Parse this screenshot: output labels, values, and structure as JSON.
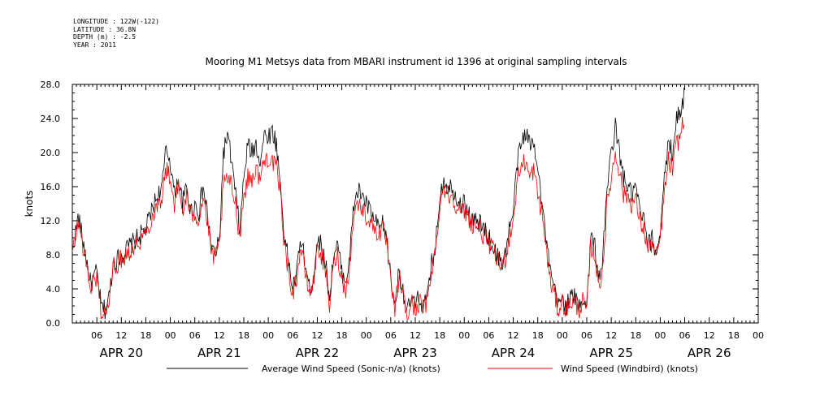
{
  "header": {
    "longitude": "LONGITUDE : 122W(-122)",
    "latitude": "LATITUDE : 36.8N",
    "depth": "DEPTH (m) : -2.5",
    "year": "YEAR : 2011"
  },
  "chart_data": {
    "type": "line",
    "title": "Mooring M1 Metsys data from MBARI instrument id 1396 at original sampling intervals",
    "ylabel": "knots",
    "xlabel": "",
    "ylim": [
      0,
      28
    ],
    "yticks": [
      "0.0",
      "4.0",
      "8.0",
      "12.0",
      "16.0",
      "20.0",
      "24.0",
      "28.0"
    ],
    "xlim_hours": [
      0,
      168
    ],
    "hour_tick_labels": [
      "06",
      "12",
      "18",
      "00",
      "06",
      "12",
      "18",
      "00",
      "06",
      "12",
      "18",
      "00",
      "06",
      "12",
      "18",
      "00",
      "06",
      "12",
      "18",
      "00",
      "06",
      "12",
      "18",
      "00",
      "06",
      "12",
      "18",
      "00"
    ],
    "day_labels": [
      "APR 20",
      "APR 21",
      "APR 22",
      "APR 23",
      "APR 24",
      "APR 25",
      "APR 26"
    ],
    "grid": false,
    "legend_position": "bottom",
    "series": [
      {
        "name": "Average Wind Speed (Sonic-n/a) (knots)",
        "color": "#000000",
        "keypoints": [
          [
            0,
            8.5
          ],
          [
            1.5,
            12.5
          ],
          [
            3,
            8.5
          ],
          [
            4.5,
            4.5
          ],
          [
            6,
            6
          ],
          [
            7,
            2
          ],
          [
            8,
            1.5
          ],
          [
            9,
            3
          ],
          [
            10,
            7
          ],
          [
            12,
            8
          ],
          [
            14,
            9
          ],
          [
            16,
            10
          ],
          [
            18,
            11
          ],
          [
            20,
            14
          ],
          [
            22,
            16
          ],
          [
            23,
            20.5
          ],
          [
            24,
            19
          ],
          [
            25,
            15
          ],
          [
            26,
            17
          ],
          [
            27,
            14
          ],
          [
            28,
            16
          ],
          [
            29,
            13
          ],
          [
            30,
            14
          ],
          [
            31,
            13
          ],
          [
            32,
            16
          ],
          [
            33,
            13
          ],
          [
            34,
            9
          ],
          [
            35,
            8
          ],
          [
            36,
            9.5
          ],
          [
            37,
            20
          ],
          [
            38,
            22
          ],
          [
            39,
            19
          ],
          [
            40,
            15
          ],
          [
            41,
            11
          ],
          [
            42,
            17
          ],
          [
            43,
            21
          ],
          [
            44,
            20
          ],
          [
            45,
            21
          ],
          [
            46,
            19
          ],
          [
            47,
            22
          ],
          [
            48,
            22
          ],
          [
            49,
            22.5
          ],
          [
            50,
            21
          ],
          [
            51,
            16
          ],
          [
            52,
            10
          ],
          [
            53,
            7
          ],
          [
            54,
            4
          ],
          [
            55,
            6
          ],
          [
            56,
            10
          ],
          [
            57,
            7
          ],
          [
            58,
            4
          ],
          [
            59,
            5
          ],
          [
            60,
            10
          ],
          [
            61,
            9
          ],
          [
            62,
            7
          ],
          [
            63,
            3
          ],
          [
            64,
            8
          ],
          [
            65,
            9
          ],
          [
            66,
            6
          ],
          [
            67,
            5
          ],
          [
            68,
            8
          ],
          [
            69,
            14
          ],
          [
            70,
            15.5
          ],
          [
            71,
            15
          ],
          [
            72,
            14
          ],
          [
            73,
            13
          ],
          [
            74,
            12
          ],
          [
            75,
            11
          ],
          [
            76,
            11.5
          ],
          [
            77,
            10
          ],
          [
            78,
            5
          ],
          [
            79,
            2
          ],
          [
            80,
            6
          ],
          [
            81,
            4
          ],
          [
            82,
            1
          ],
          [
            83,
            3
          ],
          [
            84,
            2
          ],
          [
            85,
            3
          ],
          [
            86,
            2
          ],
          [
            87,
            3
          ],
          [
            88,
            7
          ],
          [
            89,
            9
          ],
          [
            90,
            15
          ],
          [
            91,
            17
          ],
          [
            92,
            16
          ],
          [
            93,
            16
          ],
          [
            94,
            15
          ],
          [
            95,
            14
          ],
          [
            96,
            14
          ],
          [
            97,
            13
          ],
          [
            98,
            12
          ],
          [
            99,
            12
          ],
          [
            100,
            11.5
          ],
          [
            101,
            11
          ],
          [
            102,
            10
          ],
          [
            103,
            9
          ],
          [
            104,
            8
          ],
          [
            105,
            7
          ],
          [
            106,
            8
          ],
          [
            107,
            11
          ],
          [
            108,
            13
          ],
          [
            109,
            19
          ],
          [
            110,
            21
          ],
          [
            111,
            22.5
          ],
          [
            112,
            21
          ],
          [
            113,
            21
          ],
          [
            114,
            19
          ],
          [
            115,
            14
          ],
          [
            116,
            10
          ],
          [
            117,
            6
          ],
          [
            118,
            4
          ],
          [
            119,
            2
          ],
          [
            120,
            3
          ],
          [
            121,
            2
          ],
          [
            122,
            3
          ],
          [
            123,
            3
          ],
          [
            124,
            2
          ],
          [
            125,
            3
          ],
          [
            126,
            2
          ],
          [
            127,
            10
          ],
          [
            128,
            9
          ],
          [
            129,
            5
          ],
          [
            130,
            8
          ],
          [
            131,
            16
          ],
          [
            132,
            20
          ],
          [
            133,
            23
          ],
          [
            134,
            20
          ],
          [
            135,
            17
          ],
          [
            136,
            16
          ],
          [
            137,
            15
          ],
          [
            138,
            16
          ],
          [
            139,
            13
          ],
          [
            140,
            12
          ],
          [
            141,
            9
          ],
          [
            142,
            10
          ],
          [
            143,
            8
          ],
          [
            144,
            11
          ],
          [
            145,
            17
          ],
          [
            146,
            21
          ],
          [
            147,
            20
          ],
          [
            148,
            24
          ],
          [
            149,
            25
          ],
          [
            150,
            27
          ]
        ]
      },
      {
        "name": "Wind Speed (Windbird) (knots)",
        "color": "#ff0000",
        "keypoints": [
          [
            0,
            8
          ],
          [
            1.5,
            12
          ],
          [
            3,
            8
          ],
          [
            4.5,
            4
          ],
          [
            6,
            5.5
          ],
          [
            7,
            1.5
          ],
          [
            8,
            1
          ],
          [
            9,
            2.5
          ],
          [
            10,
            6.5
          ],
          [
            12,
            7.5
          ],
          [
            14,
            8.5
          ],
          [
            16,
            9.5
          ],
          [
            18,
            10.5
          ],
          [
            20,
            13
          ],
          [
            22,
            15
          ],
          [
            23,
            18
          ],
          [
            24,
            17
          ],
          [
            25,
            14
          ],
          [
            26,
            16
          ],
          [
            27,
            13
          ],
          [
            28,
            15
          ],
          [
            29,
            12.5
          ],
          [
            30,
            13
          ],
          [
            31,
            12
          ],
          [
            32,
            15
          ],
          [
            33,
            12
          ],
          [
            34,
            8.5
          ],
          [
            35,
            7.5
          ],
          [
            36,
            9
          ],
          [
            37,
            16
          ],
          [
            38,
            17
          ],
          [
            39,
            16
          ],
          [
            40,
            14
          ],
          [
            41,
            10
          ],
          [
            42,
            15
          ],
          [
            43,
            17
          ],
          [
            44,
            17
          ],
          [
            45,
            18
          ],
          [
            46,
            17
          ],
          [
            47,
            19
          ],
          [
            48,
            19.5
          ],
          [
            49,
            19
          ],
          [
            50,
            18
          ],
          [
            51,
            15
          ],
          [
            52,
            9
          ],
          [
            53,
            6
          ],
          [
            54,
            3.5
          ],
          [
            55,
            5.5
          ],
          [
            56,
            9
          ],
          [
            57,
            6
          ],
          [
            58,
            3.5
          ],
          [
            59,
            4.5
          ],
          [
            60,
            9
          ],
          [
            61,
            8
          ],
          [
            62,
            6
          ],
          [
            63,
            2
          ],
          [
            64,
            7
          ],
          [
            65,
            8
          ],
          [
            66,
            5
          ],
          [
            67,
            4
          ],
          [
            68,
            7
          ],
          [
            69,
            13
          ],
          [
            70,
            14
          ],
          [
            71,
            13.5
          ],
          [
            72,
            12.5
          ],
          [
            73,
            12
          ],
          [
            74,
            11
          ],
          [
            75,
            10.5
          ],
          [
            76,
            11
          ],
          [
            77,
            9.5
          ],
          [
            78,
            4.5
          ],
          [
            79,
            1.5
          ],
          [
            80,
            5.5
          ],
          [
            81,
            3.5
          ],
          [
            82,
            0.5
          ],
          [
            83,
            2.5
          ],
          [
            84,
            1.5
          ],
          [
            85,
            2.5
          ],
          [
            86,
            1.5
          ],
          [
            87,
            2.5
          ],
          [
            88,
            6.5
          ],
          [
            89,
            8.5
          ],
          [
            90,
            14
          ],
          [
            91,
            16
          ],
          [
            92,
            15
          ],
          [
            93,
            15
          ],
          [
            94,
            14
          ],
          [
            95,
            13
          ],
          [
            96,
            13
          ],
          [
            97,
            12.5
          ],
          [
            98,
            11.5
          ],
          [
            99,
            11.5
          ],
          [
            100,
            11
          ],
          [
            101,
            10
          ],
          [
            102,
            9.5
          ],
          [
            103,
            8.5
          ],
          [
            104,
            7.5
          ],
          [
            105,
            6.5
          ],
          [
            106,
            7.5
          ],
          [
            107,
            10
          ],
          [
            108,
            12
          ],
          [
            109,
            17
          ],
          [
            110,
            18.5
          ],
          [
            111,
            19
          ],
          [
            112,
            17
          ],
          [
            113,
            18
          ],
          [
            114,
            15
          ],
          [
            115,
            13
          ],
          [
            116,
            9
          ],
          [
            117,
            5
          ],
          [
            118,
            3.5
          ],
          [
            119,
            1.5
          ],
          [
            120,
            2.5
          ],
          [
            121,
            1.5
          ],
          [
            122,
            2.5
          ],
          [
            123,
            2.5
          ],
          [
            124,
            1.5
          ],
          [
            125,
            2.5
          ],
          [
            126,
            1.5
          ],
          [
            127,
            9
          ],
          [
            128,
            8
          ],
          [
            129,
            4
          ],
          [
            130,
            7
          ],
          [
            131,
            14
          ],
          [
            132,
            17
          ],
          [
            133,
            20
          ],
          [
            134,
            18
          ],
          [
            135,
            15
          ],
          [
            136,
            15
          ],
          [
            137,
            14
          ],
          [
            138,
            14.5
          ],
          [
            139,
            12
          ],
          [
            140,
            11
          ],
          [
            141,
            8.5
          ],
          [
            142,
            9.5
          ],
          [
            143,
            7.5
          ],
          [
            144,
            10
          ],
          [
            145,
            15
          ],
          [
            146,
            19
          ],
          [
            147,
            18
          ],
          [
            148,
            21
          ],
          [
            149,
            22
          ],
          [
            150,
            25
          ]
        ]
      }
    ]
  }
}
